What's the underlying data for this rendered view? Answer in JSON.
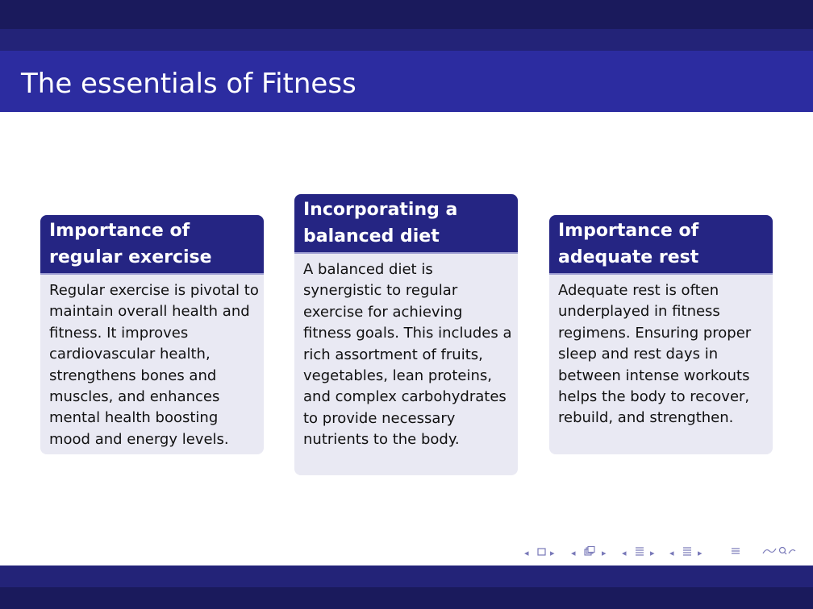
{
  "slide": {
    "title": "The essentials of Fitness"
  },
  "blocks": [
    {
      "title": "Importance of regular exercise",
      "body": "Regular exercise is pivotal to maintain overall health and fitness. It improves cardiovascular health, strengthens bones and muscles, and enhances mental health boosting mood and energy levels."
    },
    {
      "title": "Incorporating a balanced diet",
      "body": "A balanced diet is synergistic to regular exercise for achieving fitness goals. This includes a rich assortment of fruits, vegetables, lean proteins, and complex carbohydrates to provide necessary nutrients to the body."
    },
    {
      "title": "Importance of adequate rest",
      "body": "Adequate rest is often underplayed in fitness regimens. Ensuring proper sleep and rest days in between intense workouts helps the body to recover, rebuild, and strengthen."
    }
  ],
  "navigation": {
    "icons": [
      "prev-arrow-icon",
      "frame-icon",
      "next-arrow-icon",
      "prev-arrow-icon",
      "subsection-icon",
      "next-arrow-icon",
      "prev-arrow-icon",
      "section-icon",
      "next-arrow-icon",
      "prev-arrow-icon",
      "document-icon",
      "next-arrow-icon",
      "align-icon",
      "search-icon"
    ],
    "color": "#7878b8"
  },
  "colors": {
    "header_dark": "#1a1a5c",
    "header_mid": "#232378",
    "title_bar": "#2c2ca0",
    "block_head": "#252583",
    "block_body": "#e9e9f3"
  }
}
